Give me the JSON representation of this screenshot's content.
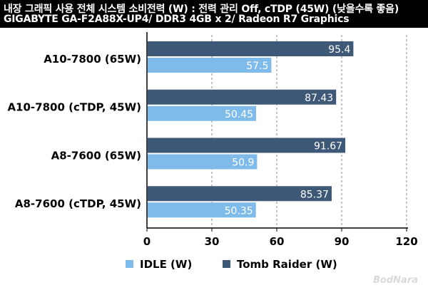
{
  "header": {
    "title_line1": "내장 그래픽 사용 전체 시스템 소비전력 (W) : 전력 관리 Off, cTDP (45W) (낮을수록 좋음)",
    "title_line2": "GIGABYTE GA-F2A88X-UP4/ DDR3 4GB x 2/ Radeon R7 Graphics"
  },
  "watermark": "BodNara",
  "colors": {
    "header_bg": "#000000",
    "idle": "#7fbbea",
    "tomb": "#3e5878",
    "label_text": "#ffffff"
  },
  "chart_data": {
    "type": "bar",
    "orientation": "horizontal",
    "categories": [
      "A10-7800 (65W)",
      "A10-7800 (cTDP, 45W)",
      "A8-7600 (65W)",
      "A8-7600 (cTDP, 45W)"
    ],
    "series": [
      {
        "name": "Tomb Raider (W)",
        "values": [
          95.4,
          87.43,
          91.67,
          85.37
        ]
      },
      {
        "name": "IDLE (W)",
        "values": [
          57.5,
          50.45,
          50.9,
          50.35
        ]
      }
    ],
    "value_labels": {
      "Tomb Raider (W)": [
        "95.4",
        "87.43",
        "91.67",
        "85.37"
      ],
      "IDLE (W)": [
        "57.5",
        "50.45",
        "50.9",
        "50.35"
      ]
    },
    "xlim": [
      0,
      120
    ],
    "xticks": [
      0,
      30,
      60,
      90,
      120
    ],
    "grid": true,
    "legend": {
      "position": "bottom",
      "entries": [
        "IDLE (W)",
        "Tomb Raider (W)"
      ]
    }
  }
}
